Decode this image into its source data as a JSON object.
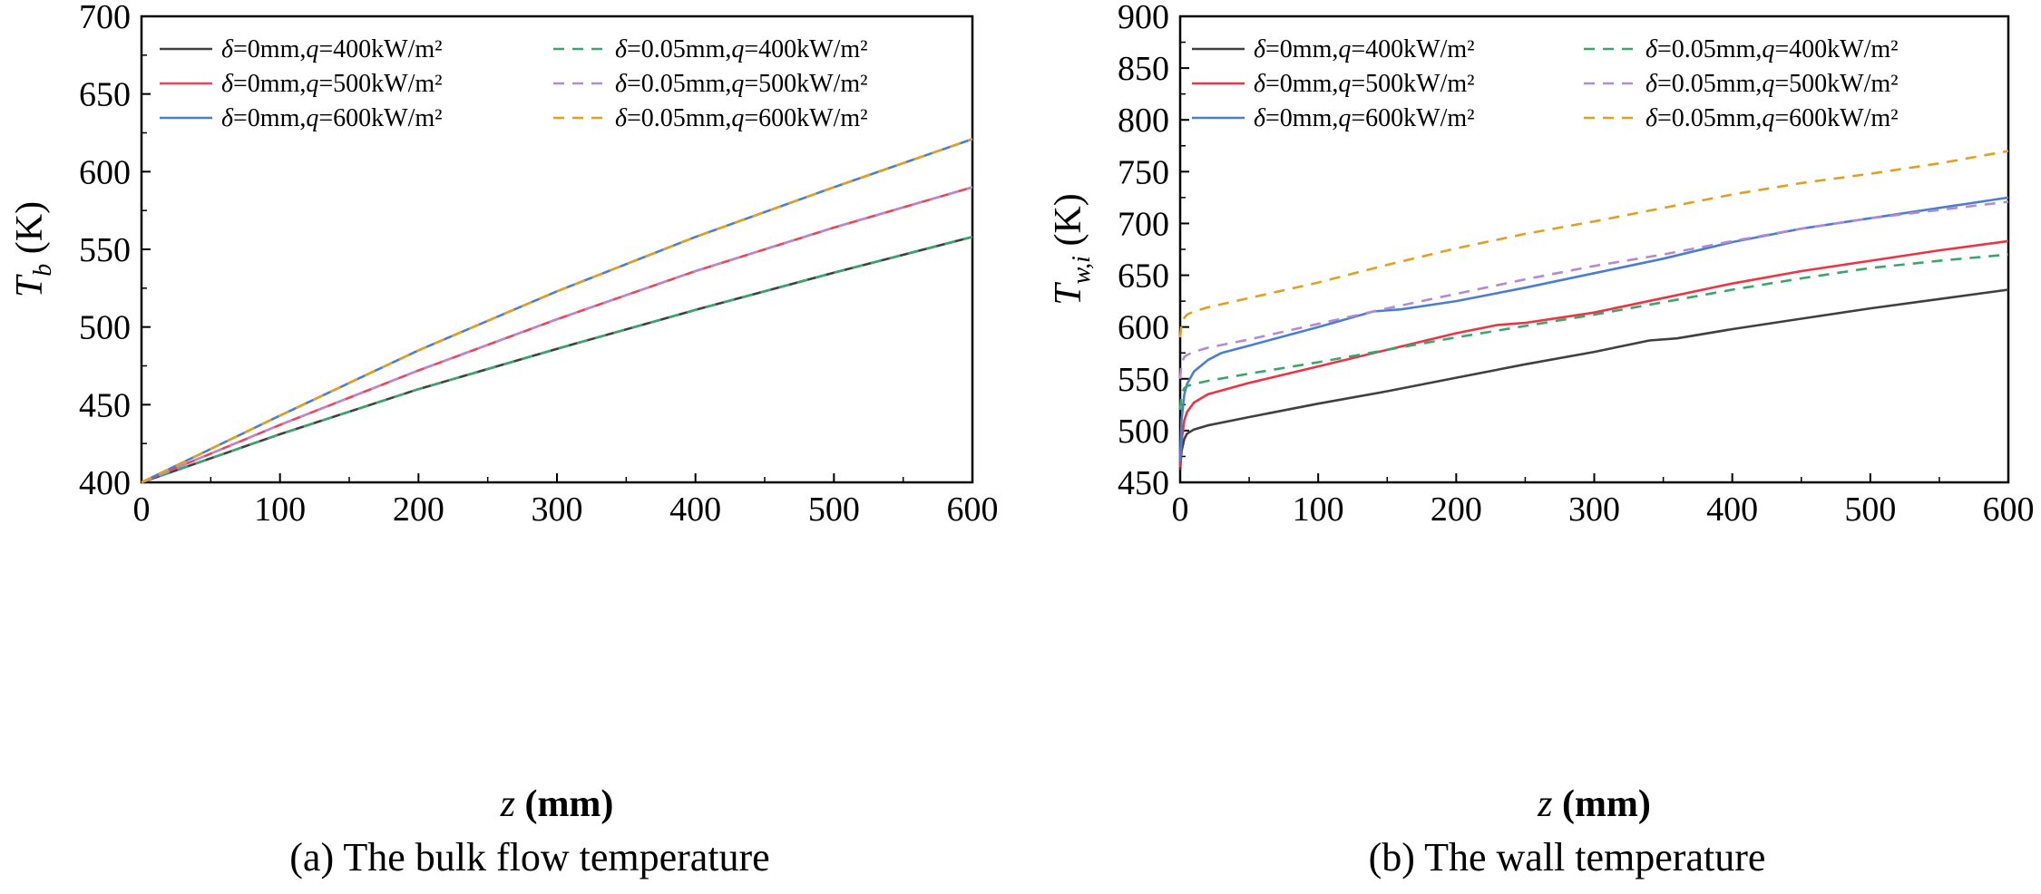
{
  "chart_data": [
    {
      "type": "line",
      "caption": "(a) The bulk flow temperature",
      "xlabel": "z (mm)",
      "ylabel": "T_b (K)",
      "xlim": [
        0,
        600
      ],
      "ylim": [
        400,
        700
      ],
      "xticks": [
        0,
        100,
        200,
        300,
        400,
        500,
        600
      ],
      "yticks": [
        400,
        450,
        500,
        550,
        600,
        650,
        700
      ],
      "grid": false,
      "legend_position": "top-left",
      "series": [
        {
          "name": "δ=0mm,q=400kW/m²",
          "style": "solid",
          "color": "#404040",
          "x": [
            0,
            100,
            200,
            300,
            400,
            500,
            600
          ],
          "y": [
            400,
            431,
            460,
            486,
            511,
            535,
            558
          ]
        },
        {
          "name": "δ=0mm,q=500kW/m²",
          "style": "solid",
          "color": "#ee4455",
          "x": [
            0,
            100,
            200,
            300,
            400,
            500,
            600
          ],
          "y": [
            400,
            437,
            472,
            505,
            536,
            564,
            590
          ]
        },
        {
          "name": "δ=0mm,q=600kW/m²",
          "style": "solid",
          "color": "#4a7fd0",
          "x": [
            0,
            100,
            200,
            300,
            400,
            500,
            600
          ],
          "y": [
            400,
            443,
            485,
            523,
            558,
            590,
            621
          ]
        },
        {
          "name": "δ=0.05mm,q=400kW/m²",
          "style": "dashed",
          "color": "#3aa66c",
          "x": [
            0,
            100,
            200,
            300,
            400,
            500,
            600
          ],
          "y": [
            400,
            431,
            460,
            486,
            511,
            535,
            558
          ]
        },
        {
          "name": "δ=0.05mm,q=500kW/m²",
          "style": "dashed",
          "color": "#b58ad0",
          "x": [
            0,
            100,
            200,
            300,
            400,
            500,
            600
          ],
          "y": [
            400,
            437,
            472,
            505,
            536,
            564,
            590
          ]
        },
        {
          "name": "δ=0.05mm,q=600kW/m²",
          "style": "dashed",
          "color": "#e0a020",
          "x": [
            0,
            100,
            200,
            300,
            400,
            500,
            600
          ],
          "y": [
            400,
            443,
            485,
            523,
            558,
            590,
            621
          ]
        }
      ]
    },
    {
      "type": "line",
      "caption": "(b) The wall temperature",
      "xlabel": "z (mm)",
      "ylabel": "T_w,i (K)",
      "xlim": [
        0,
        600
      ],
      "ylim": [
        450,
        900
      ],
      "xticks": [
        0,
        100,
        200,
        300,
        400,
        500,
        600
      ],
      "yticks": [
        450,
        500,
        550,
        600,
        650,
        700,
        750,
        800,
        850,
        900
      ],
      "grid": false,
      "legend_position": "top-left",
      "series": [
        {
          "name": "δ=0mm,q=400kW/m²",
          "style": "solid",
          "color": "#404040",
          "x": [
            0,
            1,
            3,
            5,
            10,
            20,
            50,
            100,
            150,
            200,
            250,
            300,
            340,
            360,
            400,
            450,
            500,
            550,
            600
          ],
          "y": [
            462,
            480,
            492,
            497,
            501,
            505,
            513,
            526,
            538,
            551,
            564,
            576,
            587,
            589,
            598,
            608,
            618,
            627,
            636
          ]
        },
        {
          "name": "δ=0mm,q=500kW/m²",
          "style": "solid",
          "color": "#ee3344",
          "x": [
            0,
            1,
            3,
            5,
            10,
            20,
            50,
            100,
            150,
            200,
            230,
            250,
            300,
            350,
            400,
            450,
            500,
            550,
            600
          ],
          "y": [
            465,
            490,
            510,
            518,
            527,
            535,
            546,
            562,
            578,
            594,
            602,
            604,
            614,
            628,
            642,
            654,
            664,
            674,
            683
          ]
        },
        {
          "name": "δ=0mm,q=600kW/m²",
          "style": "solid",
          "color": "#4a7fd0",
          "x": [
            0,
            1,
            3,
            5,
            10,
            20,
            30,
            50,
            100,
            140,
            160,
            200,
            250,
            300,
            350,
            400,
            450,
            500,
            550,
            600
          ],
          "y": [
            470,
            510,
            535,
            545,
            557,
            568,
            575,
            582,
            600,
            615,
            617,
            625,
            638,
            652,
            666,
            682,
            695,
            705,
            715,
            725
          ]
        },
        {
          "name": "δ=0.05mm,q=400kW/m²",
          "style": "dashed",
          "color": "#3aa66c",
          "x": [
            0,
            1,
            3,
            5,
            10,
            20,
            50,
            100,
            150,
            200,
            250,
            300,
            350,
            400,
            450,
            500,
            550,
            600
          ],
          "y": [
            520,
            535,
            541,
            543,
            545,
            548,
            555,
            566,
            578,
            590,
            601,
            612,
            624,
            636,
            647,
            657,
            664,
            670
          ]
        },
        {
          "name": "δ=0.05mm,q=500kW/m²",
          "style": "dashed",
          "color": "#b58ad0",
          "x": [
            0,
            1,
            3,
            5,
            10,
            20,
            50,
            100,
            150,
            200,
            250,
            300,
            350,
            400,
            450,
            500,
            550,
            600
          ],
          "y": [
            550,
            565,
            571,
            573,
            576,
            580,
            588,
            603,
            618,
            632,
            646,
            659,
            670,
            683,
            695,
            705,
            713,
            721
          ]
        },
        {
          "name": "δ=0.05mm,q=600kW/m²",
          "style": "dashed",
          "color": "#e0a020",
          "x": [
            0,
            1,
            3,
            5,
            10,
            20,
            50,
            100,
            150,
            200,
            250,
            300,
            350,
            400,
            450,
            500,
            550,
            600
          ],
          "y": [
            590,
            603,
            609,
            612,
            615,
            619,
            628,
            643,
            660,
            676,
            690,
            702,
            715,
            728,
            739,
            748,
            758,
            770
          ]
        }
      ]
    }
  ]
}
